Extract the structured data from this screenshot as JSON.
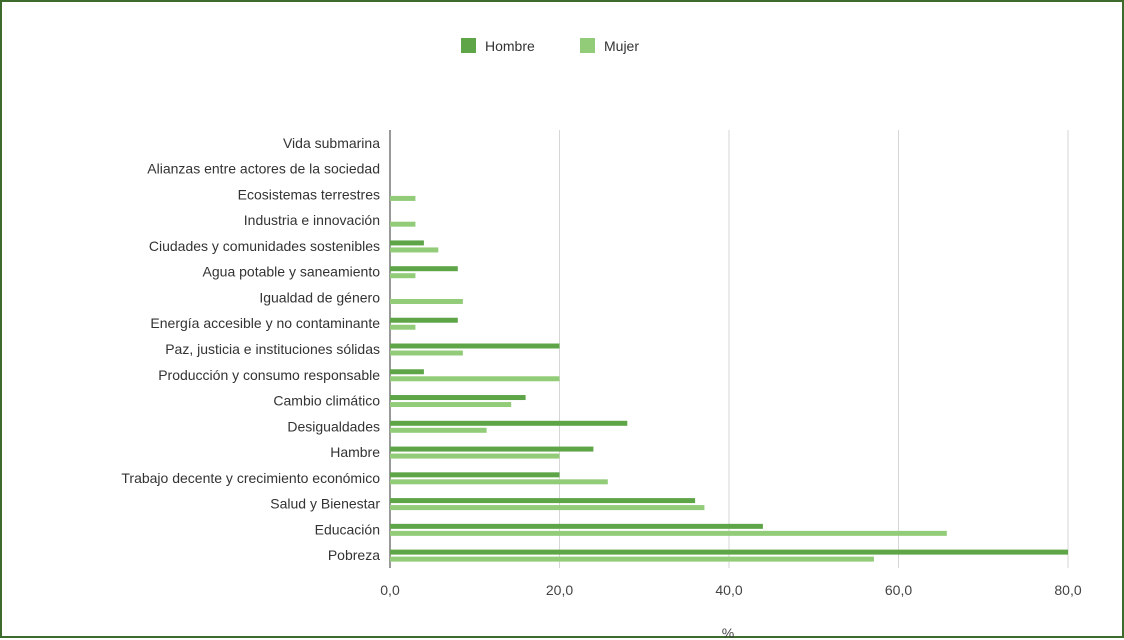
{
  "chart_data": {
    "type": "bar",
    "orientation": "horizontal",
    "categories": [
      "Vida submarina",
      "Alianzas entre actores de la sociedad",
      "Ecosistemas terrestres",
      "Industria e innovación",
      "Ciudades y comunidades sostenibles",
      "Agua potable y saneamiento",
      "Igualdad de género",
      "Energía accesible y no contaminante",
      "Paz, justicia e instituciones sólidas",
      "Producción y consumo responsable",
      "Cambio climático",
      "Desigualdades",
      "Hambre",
      "Trabajo decente y crecimiento económico",
      "Salud y Bienestar",
      "Educación",
      "Pobreza"
    ],
    "series": [
      {
        "name": "Hombre",
        "color": "#5ea548",
        "values": [
          0,
          0,
          0,
          0,
          4,
          8,
          0,
          8,
          20,
          4,
          16,
          28,
          24,
          20,
          36,
          44,
          80
        ]
      },
      {
        "name": "Mujer",
        "color": "#92cc79",
        "values": [
          0,
          0,
          3,
          3,
          5.7,
          3,
          8.6,
          3,
          8.6,
          20,
          14.3,
          11.4,
          20,
          25.7,
          37.1,
          65.7,
          57.1
        ]
      }
    ],
    "xticks": [
      "0,0",
      "20,0",
      "40,0",
      "60,0",
      "80,0"
    ],
    "xlim": [
      0,
      80
    ],
    "xlabel": "%",
    "ylabel": "",
    "title": "",
    "legend_position": "top",
    "grid": true
  }
}
